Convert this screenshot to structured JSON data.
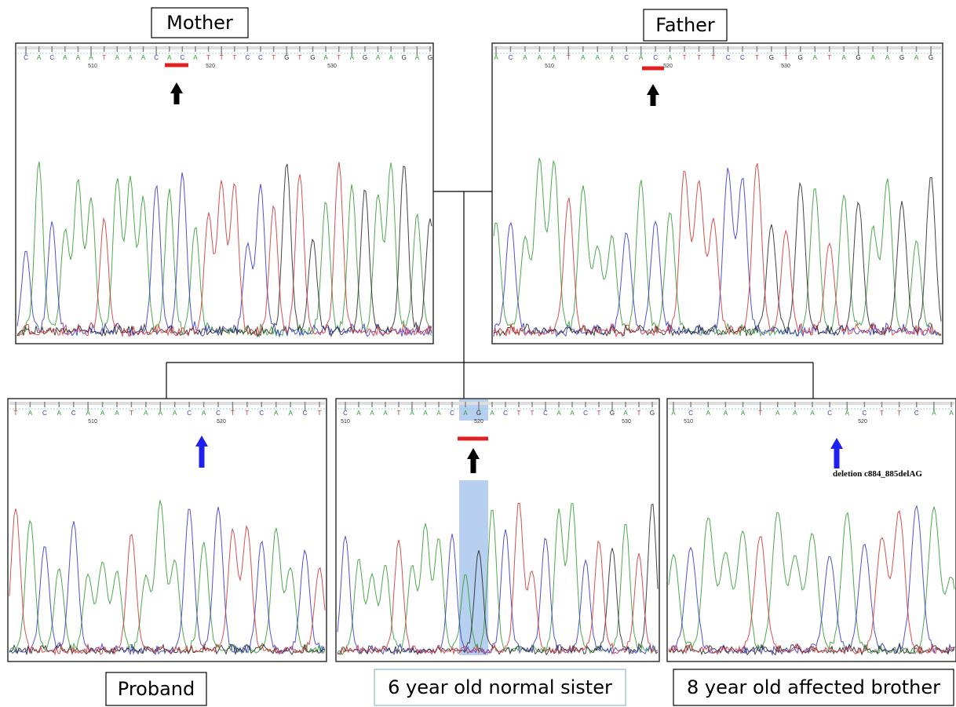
{
  "panels": [
    {
      "label": "Mother",
      "bases": [
        "C",
        "A",
        "C",
        "A",
        "A",
        "A",
        "T",
        "A",
        "A",
        "A",
        "C",
        "A",
        "C",
        "A",
        "T",
        "T",
        "T",
        "C",
        "C",
        "T",
        "G",
        "T",
        "G",
        "A",
        "T",
        "A",
        "G",
        "A",
        "A",
        "G",
        "A",
        "G"
      ],
      "positions": [
        "510",
        "520",
        "530"
      ]
    },
    {
      "label": "Father",
      "bases": [
        "A",
        "C",
        "A",
        "A",
        "A",
        "T",
        "A",
        "A",
        "A",
        "C",
        "A",
        "C",
        "A",
        "T",
        "T",
        "T",
        "C",
        "C",
        "T",
        "G",
        "T",
        "G",
        "A",
        "T",
        "A",
        "G",
        "A",
        "A",
        "G",
        "A",
        "G"
      ],
      "positions": [
        "510",
        "520",
        "530"
      ]
    },
    {
      "label": "Proband",
      "bases": [
        "T",
        "A",
        "C",
        "A",
        "C",
        "A",
        "A",
        "A",
        "T",
        "A",
        "A",
        "A",
        "C",
        "A",
        "C",
        "T",
        "T",
        "C",
        "A",
        "A",
        "C",
        "T"
      ],
      "positions": [
        "510",
        "520"
      ]
    },
    {
      "label": "6 year old normal sister",
      "bases": [
        "C",
        "A",
        "A",
        "A",
        "T",
        "A",
        "A",
        "A",
        "C",
        "A",
        "G",
        "A",
        "C",
        "T",
        "T",
        "C",
        "A",
        "A",
        "C",
        "T",
        "G",
        "A",
        "T",
        "G"
      ],
      "positions": [
        "510",
        "520",
        "530"
      ]
    },
    {
      "label": "8 year old affected brother",
      "bases": [
        "A",
        "C",
        "A",
        "A",
        "A",
        "T",
        "A",
        "A",
        "A",
        "C",
        "A",
        "C",
        "T",
        "T",
        "C",
        "A",
        "A"
      ],
      "positions": [
        "510",
        "520"
      ],
      "annotation": "deletion c884_885delAG"
    }
  ]
}
